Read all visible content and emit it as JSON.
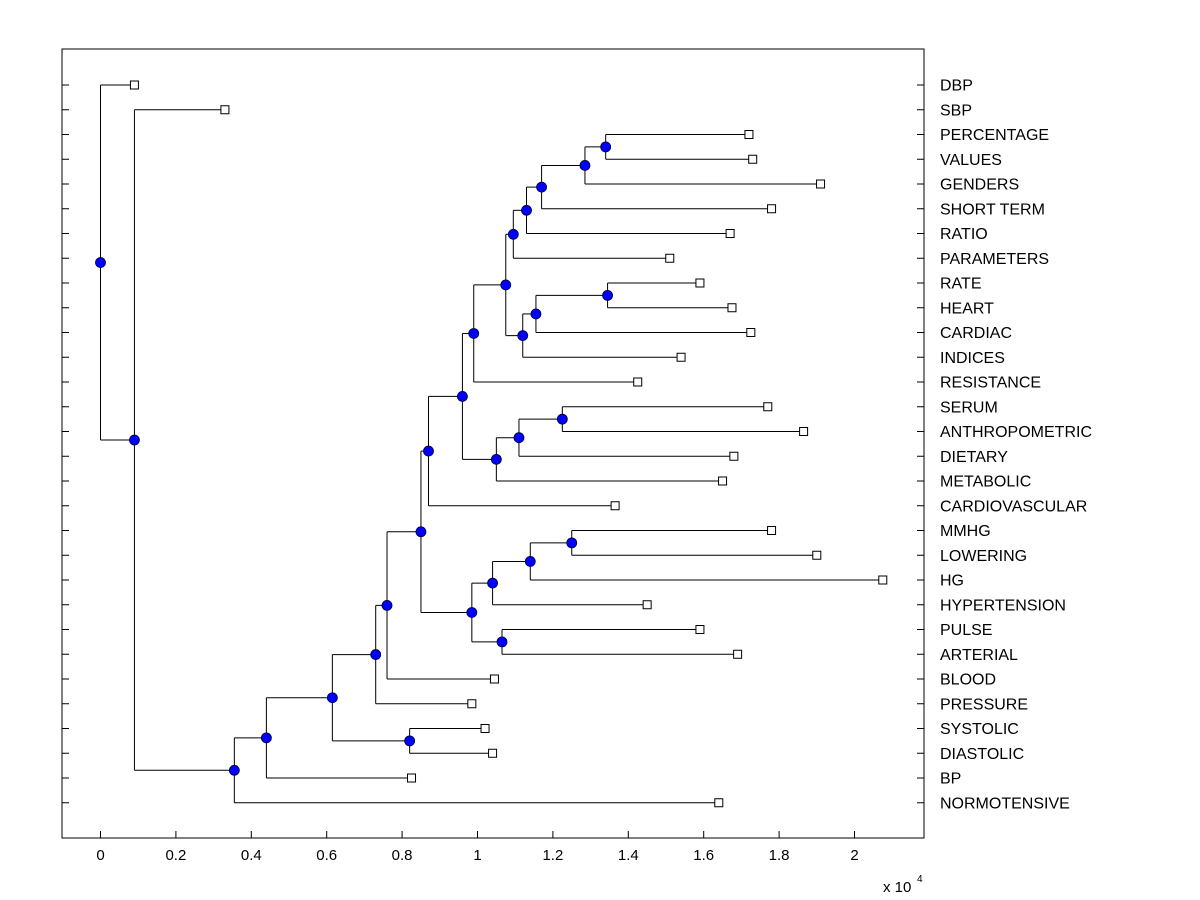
{
  "chart_data": {
    "type": "dendrogram",
    "xlim": [
      -0.1,
      2.2
    ],
    "x_ticks": [
      0,
      0.2,
      0.4,
      0.6,
      0.8,
      1,
      1.2,
      1.4,
      1.6,
      1.8,
      2
    ],
    "x_tick_labels": [
      "0",
      "0.2",
      "0.4",
      "0.6",
      "0.8",
      "1",
      "1.2",
      "1.4",
      "1.6",
      "1.8",
      "2"
    ],
    "x_exponent_label": "x 10",
    "x_exponent_power": "4",
    "grid": false,
    "leaves": [
      {
        "label": "DBP",
        "x": 0.09
      },
      {
        "label": "SBP",
        "x": 0.33
      },
      {
        "label": "PERCENTAGE",
        "x": 1.72
      },
      {
        "label": "VALUES",
        "x": 1.73
      },
      {
        "label": "GENDERS",
        "x": 1.91
      },
      {
        "label": "SHORT TERM",
        "x": 1.78
      },
      {
        "label": "RATIO",
        "x": 1.67
      },
      {
        "label": "PARAMETERS",
        "x": 1.51
      },
      {
        "label": "RATE",
        "x": 1.59
      },
      {
        "label": "HEART",
        "x": 1.675
      },
      {
        "label": "CARDIAC",
        "x": 1.725
      },
      {
        "label": "INDICES",
        "x": 1.54
      },
      {
        "label": "RESISTANCE",
        "x": 1.425
      },
      {
        "label": "SERUM",
        "x": 1.77
      },
      {
        "label": "ANTHROPOMETRIC",
        "x": 1.865
      },
      {
        "label": "DIETARY",
        "x": 1.68
      },
      {
        "label": "METABOLIC",
        "x": 1.65
      },
      {
        "label": "CARDIOVASCULAR",
        "x": 1.365
      },
      {
        "label": "MMHG",
        "x": 1.78
      },
      {
        "label": "LOWERING",
        "x": 1.9
      },
      {
        "label": "HG",
        "x": 2.075
      },
      {
        "label": "HYPERTENSION",
        "x": 1.45
      },
      {
        "label": "PULSE",
        "x": 1.59
      },
      {
        "label": "ARTERIAL",
        "x": 1.69
      },
      {
        "label": "BLOOD",
        "x": 1.045
      },
      {
        "label": "PRESSURE",
        "x": 0.985
      },
      {
        "label": "SYSTOLIC",
        "x": 1.02
      },
      {
        "label": "DIASTOLIC",
        "x": 1.04
      },
      {
        "label": "BP",
        "x": 0.825
      },
      {
        "label": "NORMOTENSIVE",
        "x": 1.64
      }
    ],
    "nodes": [
      {
        "id": "n01",
        "x": 1.34,
        "children": [
          "L2",
          "L3"
        ]
      },
      {
        "id": "n02",
        "x": 1.285,
        "children": [
          "n01",
          "L4"
        ]
      },
      {
        "id": "n03",
        "x": 1.17,
        "children": [
          "n02",
          "L5"
        ]
      },
      {
        "id": "n04",
        "x": 1.13,
        "children": [
          "n03",
          "L6"
        ]
      },
      {
        "id": "n05",
        "x": 1.095,
        "children": [
          "n04",
          "L7"
        ]
      },
      {
        "id": "n06",
        "x": 1.345,
        "children": [
          "L8",
          "L9"
        ]
      },
      {
        "id": "n07",
        "x": 1.155,
        "children": [
          "n06",
          "L10"
        ]
      },
      {
        "id": "n08",
        "x": 1.12,
        "children": [
          "n07",
          "L11"
        ]
      },
      {
        "id": "n09",
        "x": 1.075,
        "children": [
          "n05",
          "n08"
        ]
      },
      {
        "id": "n10",
        "x": 0.99,
        "children": [
          "n09",
          "L12"
        ]
      },
      {
        "id": "n11",
        "x": 1.225,
        "children": [
          "L13",
          "L14"
        ]
      },
      {
        "id": "n12",
        "x": 1.11,
        "children": [
          "n11",
          "L15"
        ]
      },
      {
        "id": "n13",
        "x": 1.05,
        "children": [
          "n12",
          "L16"
        ]
      },
      {
        "id": "n14",
        "x": 0.96,
        "children": [
          "n10",
          "n13"
        ]
      },
      {
        "id": "n15",
        "x": 0.87,
        "children": [
          "n14",
          "L17"
        ]
      },
      {
        "id": "n16",
        "x": 1.25,
        "children": [
          "L18",
          "L19"
        ]
      },
      {
        "id": "n17",
        "x": 1.14,
        "children": [
          "n16",
          "L20"
        ]
      },
      {
        "id": "n18",
        "x": 1.04,
        "children": [
          "n17",
          "L21"
        ]
      },
      {
        "id": "n19",
        "x": 1.065,
        "children": [
          "L22",
          "L23"
        ]
      },
      {
        "id": "n20",
        "x": 0.985,
        "children": [
          "n18",
          "n19"
        ]
      },
      {
        "id": "n21",
        "x": 0.85,
        "children": [
          "n15",
          "n20"
        ]
      },
      {
        "id": "n22",
        "x": 0.76,
        "children": [
          "n21",
          "L24"
        ]
      },
      {
        "id": "n23",
        "x": 0.73,
        "children": [
          "n22",
          "L25"
        ]
      },
      {
        "id": "n24",
        "x": 0.82,
        "children": [
          "L26",
          "L27"
        ]
      },
      {
        "id": "n25",
        "x": 0.615,
        "children": [
          "n23",
          "n24"
        ]
      },
      {
        "id": "n26",
        "x": 0.44,
        "children": [
          "n25",
          "L28"
        ]
      },
      {
        "id": "n27",
        "x": 0.355,
        "children": [
          "n26",
          "L29"
        ]
      },
      {
        "id": "n28",
        "x": 0.09,
        "children": [
          "L1",
          "n27"
        ]
      },
      {
        "id": "n29",
        "x": 0.0,
        "children": [
          "L0",
          "n28"
        ]
      }
    ]
  }
}
